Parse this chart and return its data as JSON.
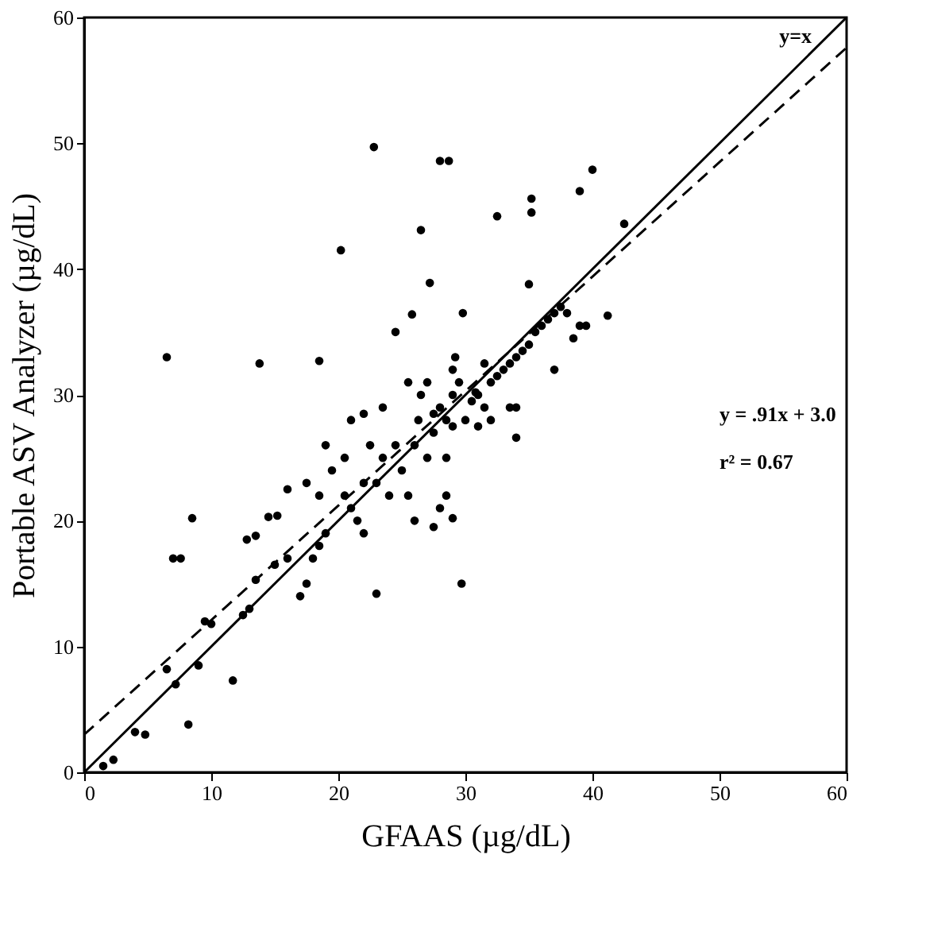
{
  "chart_data": {
    "type": "scatter",
    "xlabel": "GFAAS (µg/dL)",
    "ylabel": "Portable ASV Analyzer (µg/dL)",
    "xlim": [
      0,
      60
    ],
    "ylim": [
      0,
      60
    ],
    "xticks": [
      0,
      10,
      20,
      30,
      40,
      50,
      60
    ],
    "yticks": [
      0,
      10,
      20,
      30,
      40,
      50,
      60
    ],
    "grid": false,
    "series": [
      {
        "color": "#000000",
        "marker": "circle",
        "x": [
          6.5,
          13.8,
          18.5,
          20.2,
          22.8,
          28,
          28.7,
          26.5,
          27.2,
          25.8,
          29.8,
          32.5,
          35.2,
          35.2,
          39,
          40,
          42.5,
          41.2,
          34,
          29.7,
          23,
          8.2,
          8.5,
          7,
          7.6,
          1.5,
          2.3,
          4,
          4.8,
          6.5,
          7.2,
          9.5,
          10,
          9,
          11.7,
          12.5,
          13,
          13.5,
          12.8,
          13.5,
          14.5,
          15.2,
          15,
          16,
          17,
          17.5,
          18,
          18.5,
          19,
          18.5,
          19.5,
          20.5,
          20.5,
          21,
          21.5,
          22,
          22,
          22.5,
          22,
          23.5,
          23,
          24,
          24.5,
          25,
          25.5,
          26,
          26.3,
          26.5,
          26,
          27,
          27.5,
          27.5,
          28,
          28.5,
          29,
          29,
          29,
          29.2,
          28.5,
          28.5,
          29,
          28,
          29.5,
          30,
          30.5,
          31,
          31,
          31.5,
          32,
          32.5,
          33,
          33.5,
          34,
          34.5,
          35,
          35.5,
          36,
          36.5,
          37,
          37.5,
          38,
          39,
          39.5,
          38.5,
          34,
          32,
          35,
          37,
          33.5,
          27.5,
          24.5,
          30.8,
          31.5,
          27,
          21,
          19,
          17.5,
          16,
          23.5,
          25.5
        ],
        "values": [
          33,
          32.5,
          32.7,
          41.5,
          49.7,
          48.6,
          48.6,
          43.1,
          38.9,
          36.4,
          36.5,
          44.2,
          45.6,
          44.5,
          46.2,
          47.9,
          43.6,
          36.3,
          26.6,
          15,
          14.2,
          3.8,
          20.2,
          17,
          17,
          0.5,
          1,
          3.2,
          3,
          8.2,
          7,
          12,
          11.8,
          8.5,
          7.3,
          12.5,
          13,
          15.3,
          18.5,
          18.8,
          20.3,
          20.4,
          16.5,
          17,
          14,
          15,
          17,
          18,
          19,
          22,
          24,
          25,
          22,
          21,
          20,
          19,
          23,
          26,
          28.5,
          25,
          23,
          22,
          26,
          24,
          22,
          26,
          28,
          30,
          20,
          25,
          27,
          28.5,
          29,
          28,
          27.5,
          30,
          32,
          33,
          25,
          22,
          20.2,
          21,
          31,
          28,
          29.5,
          30,
          27.5,
          29,
          31,
          31.5,
          32,
          32.5,
          33,
          33.5,
          34,
          35,
          35.5,
          36,
          36.5,
          37,
          36.5,
          35.5,
          35.5,
          34.5,
          29,
          28,
          38.8,
          32,
          29,
          19.5,
          35,
          30.2,
          32.5,
          31,
          28,
          26,
          23,
          22.5,
          29,
          31
        ]
      },
      {
        "type": "line",
        "color": "#000000",
        "line_style": "solid",
        "marker": "none",
        "x": [
          0,
          60
        ],
        "values": [
          0,
          60
        ]
      },
      {
        "type": "line",
        "color": "#000000",
        "line_style": "dashed",
        "marker": "none",
        "x": [
          0,
          60
        ],
        "values": [
          3.0,
          57.6
        ]
      }
    ],
    "annotations": [
      "y=x",
      "y = .91x + 3.0",
      "r² = 0.67"
    ]
  }
}
